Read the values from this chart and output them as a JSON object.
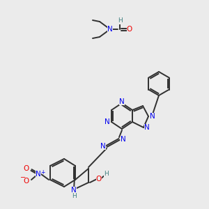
{
  "bg": "#ebebeb",
  "C": "#303030",
  "N": "#0000ee",
  "O": "#ee0000",
  "H": "#408080",
  "B": "#303030",
  "lw": 1.4,
  "fs": 7.5,
  "fss": 6.5
}
